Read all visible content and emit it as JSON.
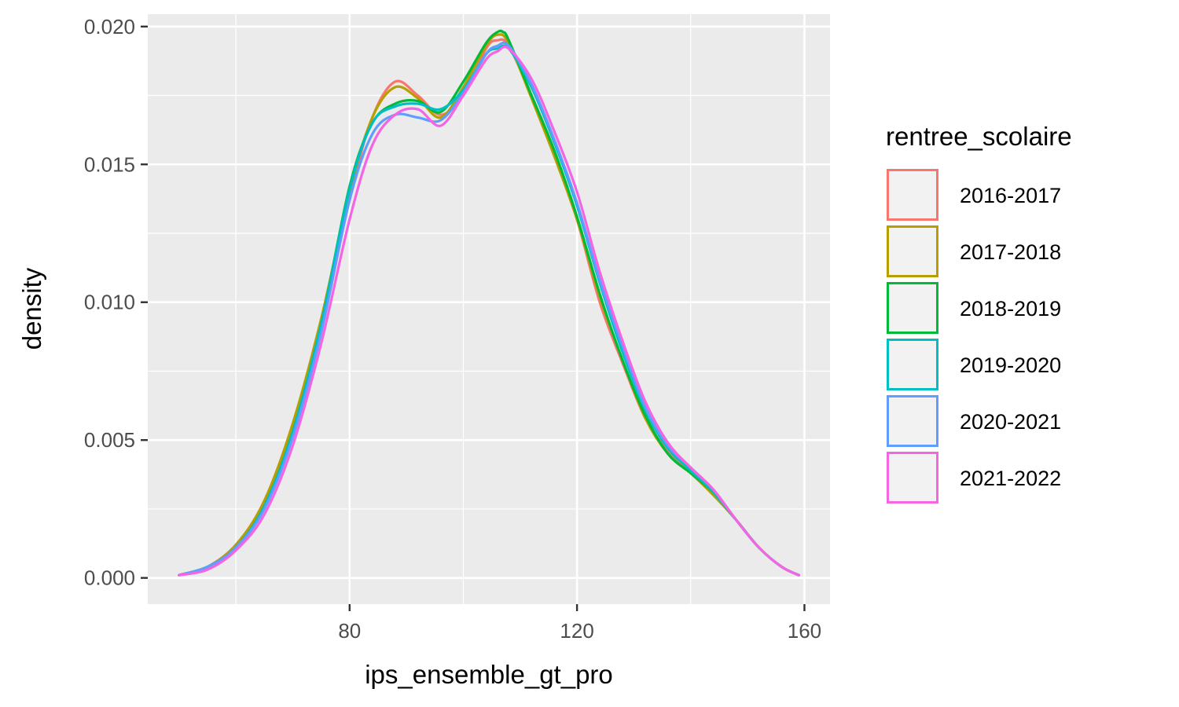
{
  "chart_data": {
    "type": "line",
    "subtype": "density",
    "title": "",
    "xlabel": "ips_ensemble_gt_pro",
    "ylabel": "density",
    "xlim": [
      44.5,
      164.5
    ],
    "ylim": [
      -0.00095,
      0.02045
    ],
    "x_ticks": [
      80,
      120,
      160
    ],
    "x_tick_labels": [
      "80",
      "120",
      "160"
    ],
    "y_ticks": [
      0.0,
      0.005,
      0.01,
      0.015,
      0.02
    ],
    "y_tick_labels": [
      "0.000",
      "0.005",
      "0.010",
      "0.015",
      "0.020"
    ],
    "grid": true,
    "legend": {
      "title": "rentree_scolaire",
      "position": "right"
    },
    "series": [
      {
        "name": "2016-2017",
        "color": "#F8766D",
        "x": [
          50,
          55,
          60,
          65,
          70,
          75,
          80,
          84,
          88,
          92,
          96,
          100,
          104,
          106,
          108,
          112,
          116,
          120,
          124,
          128,
          132,
          136,
          140,
          144,
          148,
          152,
          156,
          159
        ],
        "y": [
          0.0001,
          0.0004,
          0.0012,
          0.0027,
          0.0055,
          0.0093,
          0.0138,
          0.0167,
          0.018,
          0.0175,
          0.0168,
          0.0175,
          0.0192,
          0.0195,
          0.0193,
          0.0175,
          0.0155,
          0.013,
          0.01,
          0.0078,
          0.0058,
          0.0046,
          0.0039,
          0.0031,
          0.0021,
          0.0011,
          0.0004,
          0.0001
        ]
      },
      {
        "name": "2017-2018",
        "color": "#B79F00",
        "x": [
          50,
          55,
          60,
          65,
          70,
          75,
          80,
          84,
          88,
          92,
          96,
          100,
          104,
          106,
          108,
          112,
          116,
          120,
          124,
          128,
          132,
          136,
          140,
          144,
          148,
          152,
          156,
          159
        ],
        "y": [
          0.0001,
          0.0004,
          0.0012,
          0.0028,
          0.0056,
          0.0094,
          0.014,
          0.0167,
          0.0178,
          0.0174,
          0.0167,
          0.0178,
          0.0193,
          0.0197,
          0.0194,
          0.0174,
          0.0153,
          0.013,
          0.0102,
          0.0079,
          0.0058,
          0.0045,
          0.0038,
          0.003,
          0.0021,
          0.0011,
          0.0004,
          0.0001
        ]
      },
      {
        "name": "2018-2019",
        "color": "#00BA38",
        "x": [
          50,
          55,
          60,
          65,
          70,
          75,
          80,
          84,
          88,
          92,
          96,
          100,
          104,
          106,
          107,
          108,
          112,
          116,
          120,
          124,
          128,
          132,
          136,
          140,
          144,
          148,
          152,
          156,
          159
        ],
        "y": [
          0.0001,
          0.0004,
          0.0011,
          0.0026,
          0.0053,
          0.0092,
          0.0142,
          0.0165,
          0.0172,
          0.0173,
          0.0169,
          0.018,
          0.0194,
          0.0198,
          0.0198,
          0.0195,
          0.0175,
          0.0155,
          0.0131,
          0.0103,
          0.0079,
          0.0059,
          0.0045,
          0.0038,
          0.0031,
          0.0021,
          0.0011,
          0.0004,
          0.0001
        ]
      },
      {
        "name": "2019-2020",
        "color": "#00BFC4",
        "x": [
          50,
          55,
          60,
          65,
          70,
          75,
          80,
          84,
          88,
          92,
          96,
          100,
          104,
          106,
          108,
          112,
          116,
          120,
          124,
          128,
          132,
          136,
          140,
          144,
          148,
          152,
          156,
          159
        ],
        "y": [
          0.0001,
          0.0004,
          0.0011,
          0.0026,
          0.0053,
          0.0092,
          0.0141,
          0.0165,
          0.0171,
          0.0172,
          0.017,
          0.0177,
          0.019,
          0.0192,
          0.0192,
          0.0178,
          0.0158,
          0.0135,
          0.0107,
          0.0082,
          0.0061,
          0.0047,
          0.0039,
          0.0031,
          0.0021,
          0.0011,
          0.0004,
          0.0001
        ]
      },
      {
        "name": "2020-2021",
        "color": "#619CFF",
        "x": [
          50,
          55,
          60,
          65,
          70,
          75,
          80,
          84,
          88,
          92,
          96,
          100,
          104,
          106,
          108,
          112,
          116,
          120,
          124,
          128,
          132,
          136,
          140,
          144,
          148,
          152,
          156,
          159
        ],
        "y": [
          0.0001,
          0.0004,
          0.0011,
          0.0025,
          0.0051,
          0.0089,
          0.0137,
          0.0161,
          0.0168,
          0.0167,
          0.0166,
          0.0176,
          0.019,
          0.0193,
          0.0193,
          0.0179,
          0.0159,
          0.0136,
          0.0108,
          0.0084,
          0.0062,
          0.0048,
          0.004,
          0.0032,
          0.0021,
          0.0011,
          0.0004,
          0.0001
        ]
      },
      {
        "name": "2021-2022",
        "color": "#F564E3",
        "x": [
          50,
          55,
          60,
          65,
          70,
          75,
          80,
          84,
          88,
          92,
          96,
          100,
          104,
          106,
          108,
          112,
          116,
          120,
          124,
          128,
          132,
          136,
          140,
          144,
          148,
          152,
          156,
          159
        ],
        "y": [
          0.0001,
          0.0003,
          0.001,
          0.0023,
          0.0048,
          0.0085,
          0.013,
          0.0157,
          0.0168,
          0.017,
          0.0164,
          0.0175,
          0.0188,
          0.0191,
          0.0192,
          0.0181,
          0.0162,
          0.014,
          0.0111,
          0.0086,
          0.0064,
          0.0049,
          0.004,
          0.0032,
          0.0021,
          0.0011,
          0.0004,
          0.0001
        ]
      }
    ]
  }
}
